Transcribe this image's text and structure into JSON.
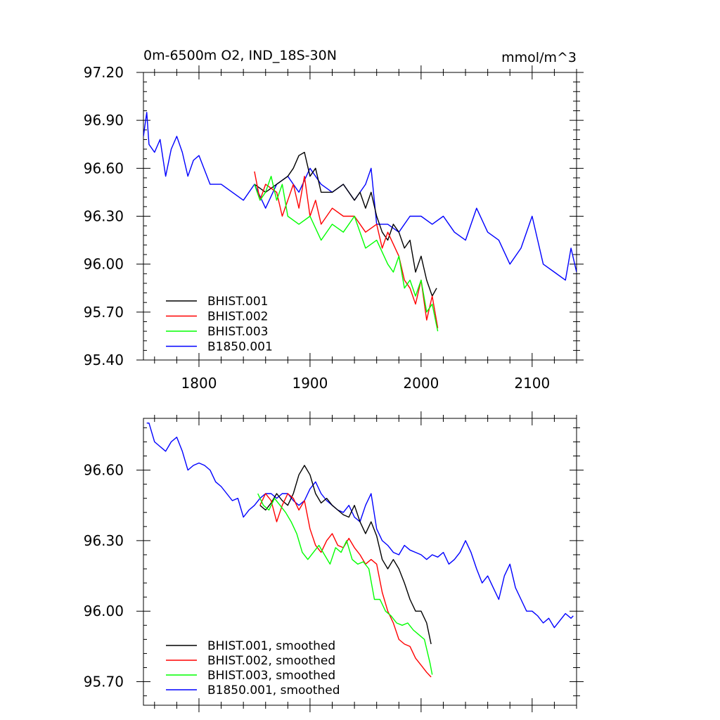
{
  "chart_data": [
    {
      "type": "line",
      "title": "0m-6500m O2, IND_18S-30N",
      "units": "mmol/m^3",
      "xlabel": "",
      "ylabel": "",
      "xlim": [
        1750,
        2140
      ],
      "ylim": [
        95.4,
        97.2
      ],
      "xticks": [
        1800,
        1900,
        2000,
        2100
      ],
      "xtick_labels": [
        "1800",
        "1900",
        "2000",
        "2100"
      ],
      "yticks": [
        95.4,
        95.7,
        96.0,
        96.3,
        96.6,
        96.9,
        97.2
      ],
      "ytick_labels": [
        "95.40",
        "95.70",
        "96.00",
        "96.30",
        "96.60",
        "96.90",
        "97.20"
      ],
      "legend_position": "bottom-left",
      "series": [
        {
          "name": "BHIST.001",
          "color": "#000000",
          "x": [
            1850,
            1860,
            1870,
            1880,
            1885,
            1890,
            1895,
            1900,
            1905,
            1910,
            1920,
            1930,
            1940,
            1945,
            1950,
            1955,
            1960,
            1965,
            1970,
            1975,
            1980,
            1985,
            1990,
            1995,
            2000,
            2005,
            2010,
            2014
          ],
          "values": [
            96.5,
            96.45,
            96.5,
            96.55,
            96.6,
            96.68,
            96.7,
            96.55,
            96.6,
            96.45,
            96.45,
            96.5,
            96.4,
            96.45,
            96.35,
            96.45,
            96.3,
            96.2,
            96.15,
            96.25,
            96.2,
            96.1,
            96.15,
            95.95,
            96.05,
            95.9,
            95.8,
            95.85
          ]
        },
        {
          "name": "BHIST.002",
          "color": "#ff0000",
          "x": [
            1850,
            1855,
            1860,
            1870,
            1875,
            1880,
            1885,
            1890,
            1895,
            1900,
            1905,
            1910,
            1920,
            1930,
            1940,
            1950,
            1960,
            1965,
            1970,
            1980,
            1985,
            1990,
            1995,
            2000,
            2005,
            2010,
            2015
          ],
          "values": [
            96.58,
            96.4,
            96.5,
            96.45,
            96.3,
            96.4,
            96.5,
            96.35,
            96.55,
            96.3,
            96.4,
            96.25,
            96.35,
            96.3,
            96.3,
            96.2,
            96.25,
            96.1,
            96.2,
            96.05,
            95.9,
            95.85,
            95.75,
            95.9,
            95.65,
            95.8,
            95.6
          ]
        },
        {
          "name": "BHIST.003",
          "color": "#00ff00",
          "x": [
            1850,
            1855,
            1860,
            1865,
            1870,
            1875,
            1880,
            1890,
            1900,
            1910,
            1920,
            1930,
            1940,
            1950,
            1960,
            1970,
            1975,
            1980,
            1985,
            1990,
            1995,
            2000,
            2005,
            2010,
            2015
          ],
          "values": [
            96.5,
            96.4,
            96.45,
            96.55,
            96.4,
            96.5,
            96.3,
            96.25,
            96.3,
            96.15,
            96.25,
            96.2,
            96.3,
            96.1,
            96.15,
            96.0,
            95.95,
            96.05,
            95.85,
            95.9,
            95.8,
            95.9,
            95.7,
            95.75,
            95.58
          ]
        },
        {
          "name": "B1850.001",
          "color": "#0000ff",
          "x": [
            1750,
            1753,
            1755,
            1760,
            1765,
            1770,
            1775,
            1780,
            1785,
            1790,
            1795,
            1800,
            1810,
            1820,
            1830,
            1840,
            1850,
            1860,
            1870,
            1880,
            1890,
            1900,
            1910,
            1920,
            1930,
            1940,
            1950,
            1955,
            1960,
            1970,
            1980,
            1990,
            2000,
            2010,
            2020,
            2030,
            2040,
            2050,
            2060,
            2070,
            2080,
            2090,
            2100,
            2110,
            2120,
            2130,
            2135,
            2140
          ],
          "values": [
            96.8,
            96.95,
            96.75,
            96.7,
            96.78,
            96.55,
            96.72,
            96.8,
            96.7,
            96.55,
            96.65,
            96.68,
            96.5,
            96.5,
            96.45,
            96.4,
            96.5,
            96.35,
            96.5,
            96.55,
            96.45,
            96.6,
            96.5,
            96.45,
            96.5,
            96.4,
            96.5,
            96.6,
            96.25,
            96.25,
            96.2,
            96.3,
            96.3,
            96.25,
            96.3,
            96.2,
            96.15,
            96.35,
            96.2,
            96.15,
            96.0,
            96.1,
            96.3,
            96.0,
            95.95,
            95.9,
            96.1,
            95.95
          ]
        }
      ]
    },
    {
      "type": "line",
      "title": "",
      "xlabel": "",
      "ylabel": "",
      "xlim": [
        1750,
        2140
      ],
      "ylim": [
        95.6,
        96.82
      ],
      "xticks": [
        1800,
        1900,
        2000,
        2100
      ],
      "xtick_labels": [
        "",
        "",
        "",
        ""
      ],
      "yticks": [
        95.7,
        96.0,
        96.3,
        96.6
      ],
      "ytick_labels": [
        "95.70",
        "96.00",
        "96.30",
        "96.60"
      ],
      "legend_position": "bottom-left",
      "series": [
        {
          "name": "BHIST.001, smoothed",
          "color": "#000000",
          "x": [
            1855,
            1860,
            1865,
            1870,
            1875,
            1880,
            1885,
            1890,
            1895,
            1900,
            1905,
            1910,
            1915,
            1920,
            1925,
            1930,
            1935,
            1940,
            1945,
            1950,
            1955,
            1960,
            1965,
            1970,
            1975,
            1980,
            1985,
            1990,
            1995,
            2000,
            2005,
            2009
          ],
          "values": [
            96.45,
            96.43,
            96.46,
            96.5,
            96.47,
            96.45,
            96.5,
            96.58,
            96.62,
            96.58,
            96.5,
            96.46,
            96.48,
            96.45,
            96.43,
            96.41,
            96.4,
            96.45,
            96.38,
            96.33,
            96.38,
            96.32,
            96.22,
            96.18,
            96.22,
            96.18,
            96.12,
            96.05,
            96.0,
            96.0,
            95.95,
            95.86
          ]
        },
        {
          "name": "BHIST.002, smoothed",
          "color": "#ff0000",
          "x": [
            1855,
            1860,
            1865,
            1870,
            1875,
            1880,
            1885,
            1890,
            1895,
            1900,
            1905,
            1910,
            1915,
            1920,
            1925,
            1930,
            1935,
            1940,
            1945,
            1950,
            1955,
            1960,
            1965,
            1970,
            1975,
            1980,
            1985,
            1990,
            1995,
            2000,
            2005,
            2009
          ],
          "values": [
            96.45,
            96.5,
            96.47,
            96.38,
            96.45,
            96.5,
            96.48,
            96.43,
            96.47,
            96.35,
            96.28,
            96.25,
            96.3,
            96.33,
            96.28,
            96.27,
            96.31,
            96.27,
            96.24,
            96.2,
            96.22,
            96.2,
            96.08,
            96.0,
            95.95,
            95.88,
            95.86,
            95.85,
            95.8,
            95.77,
            95.74,
            95.72
          ]
        },
        {
          "name": "BHIST.003, smoothed",
          "color": "#00ff00",
          "x": [
            1853,
            1858,
            1863,
            1868,
            1873,
            1878,
            1883,
            1888,
            1893,
            1898,
            1903,
            1908,
            1913,
            1918,
            1923,
            1928,
            1933,
            1938,
            1943,
            1948,
            1953,
            1958,
            1963,
            1968,
            1973,
            1978,
            1983,
            1988,
            1993,
            1998,
            2003,
            2008,
            2010
          ],
          "values": [
            96.5,
            96.45,
            96.43,
            96.48,
            96.45,
            96.42,
            96.38,
            96.33,
            96.25,
            96.22,
            96.25,
            96.28,
            96.24,
            96.2,
            96.27,
            96.25,
            96.3,
            96.22,
            96.2,
            96.21,
            96.18,
            96.05,
            96.05,
            96.0,
            95.98,
            95.95,
            95.94,
            95.95,
            95.92,
            95.9,
            95.88,
            95.78,
            95.73
          ]
        },
        {
          "name": "B1850.001, smoothed",
          "color": "#0000ff",
          "x": [
            1753,
            1755,
            1760,
            1765,
            1770,
            1775,
            1780,
            1785,
            1790,
            1795,
            1800,
            1805,
            1810,
            1815,
            1820,
            1825,
            1830,
            1835,
            1840,
            1845,
            1850,
            1855,
            1860,
            1865,
            1870,
            1875,
            1880,
            1885,
            1890,
            1895,
            1900,
            1905,
            1910,
            1915,
            1920,
            1925,
            1930,
            1935,
            1940,
            1945,
            1950,
            1955,
            1960,
            1965,
            1970,
            1975,
            1980,
            1985,
            1990,
            1995,
            2000,
            2005,
            2010,
            2015,
            2020,
            2025,
            2030,
            2035,
            2040,
            2045,
            2050,
            2055,
            2060,
            2065,
            2070,
            2075,
            2080,
            2085,
            2090,
            2095,
            2100,
            2105,
            2110,
            2115,
            2120,
            2125,
            2130,
            2135,
            2137
          ],
          "values": [
            96.8,
            96.8,
            96.72,
            96.7,
            96.68,
            96.72,
            96.74,
            96.68,
            96.6,
            96.62,
            96.63,
            96.62,
            96.6,
            96.55,
            96.53,
            96.5,
            96.47,
            96.48,
            96.4,
            96.43,
            96.45,
            96.48,
            96.5,
            96.5,
            96.48,
            96.5,
            96.5,
            96.47,
            96.45,
            96.47,
            96.52,
            96.55,
            96.5,
            96.47,
            96.45,
            96.43,
            96.42,
            96.45,
            96.4,
            96.38,
            96.45,
            96.5,
            96.35,
            96.3,
            96.28,
            96.25,
            96.24,
            96.28,
            96.26,
            96.25,
            96.24,
            96.22,
            96.24,
            96.23,
            96.25,
            96.2,
            96.22,
            96.25,
            96.3,
            96.25,
            96.18,
            96.12,
            96.15,
            96.1,
            96.05,
            96.15,
            96.2,
            96.1,
            96.05,
            96.0,
            96.0,
            95.98,
            95.95,
            95.97,
            95.93,
            95.96,
            95.99,
            95.97,
            95.98
          ]
        }
      ]
    }
  ]
}
